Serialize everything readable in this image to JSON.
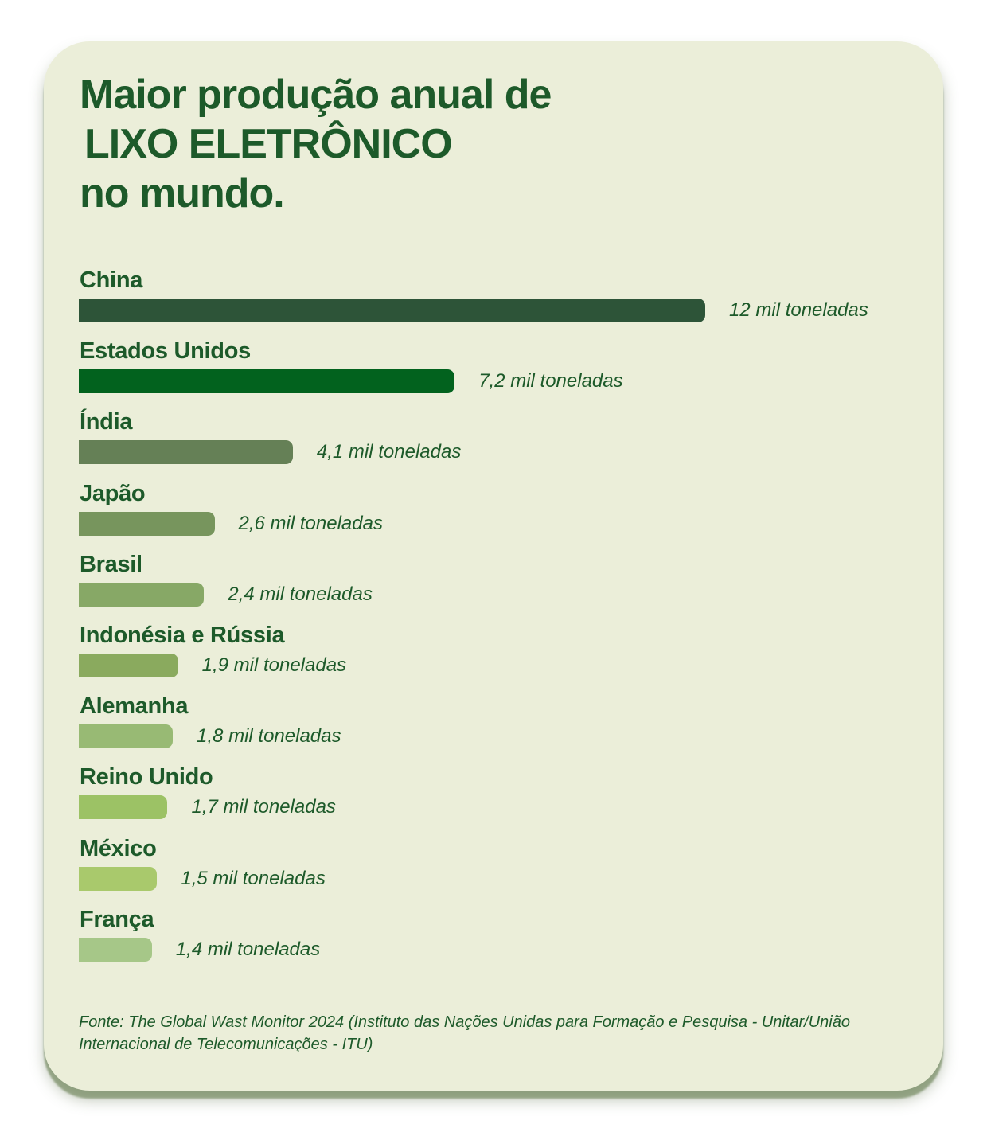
{
  "title": {
    "line1": "Maior produção anual de",
    "highlight": "LIXO ELETRÔNICO",
    "line3": "no mundo."
  },
  "colors": {
    "card_background": "#ebeed9",
    "text": "#1d5a2a",
    "highlight": "#b5cc3c"
  },
  "chart_data": {
    "type": "bar",
    "orientation": "horizontal",
    "unit": "mil toneladas",
    "categories": [
      "China",
      "Estados Unidos",
      "Índia",
      "Japão",
      "Brasil",
      "Indonésia e Rússia",
      "Alemanha",
      "Reino Unido",
      "México",
      "França"
    ],
    "values": [
      12,
      7.2,
      4.1,
      2.6,
      2.4,
      1.9,
      1.8,
      1.7,
      1.5,
      1.4
    ],
    "value_labels": [
      "12 mil toneladas",
      "7,2 mil toneladas",
      "4,1 mil toneladas",
      "2,6 mil toneladas",
      "2,4 mil toneladas",
      "1,9 mil toneladas",
      "1,8 mil toneladas",
      "1,7 mil toneladas",
      "1,5 mil toneladas",
      "1,4 mil toneladas"
    ],
    "bar_colors": [
      "#2d5438",
      "#02621e",
      "#658056",
      "#77955d",
      "#87a866",
      "#8aaa5e",
      "#98ba74",
      "#9cc265",
      "#a9c96c",
      "#a6c788"
    ],
    "xlim": [
      0,
      12
    ],
    "grid": false,
    "legend": "none"
  },
  "source": "Fonte: The Global Wast Monitor 2024 (Instituto das Nações Unidas para Formação e Pesquisa - Unitar/União Internacional de Telecomunicações - ITU)"
}
